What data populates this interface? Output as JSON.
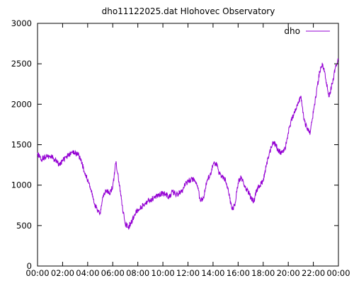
{
  "chart_data": {
    "type": "line",
    "title": "dho11122025.dat Hlohovec Observatory",
    "xlabel": "",
    "ylabel": "",
    "xlim": [
      "00:00",
      "24:00"
    ],
    "ylim": [
      0,
      3000
    ],
    "x_ticks": [
      "00:00",
      "02:00",
      "04:00",
      "06:00",
      "08:00",
      "10:00",
      "12:00",
      "14:00",
      "16:00",
      "18:00",
      "20:00",
      "22:00",
      "00:00"
    ],
    "y_ticks": [
      "0",
      "500",
      "1000",
      "1500",
      "2000",
      "2500",
      "3000"
    ],
    "grid": false,
    "legend_position": "top-right",
    "series": [
      {
        "name": "dho",
        "color": "#9400d3",
        "x": [
          "00:00",
          "00:15",
          "00:30",
          "00:45",
          "01:00",
          "01:15",
          "01:30",
          "01:45",
          "02:00",
          "02:15",
          "02:30",
          "02:45",
          "03:00",
          "03:15",
          "03:30",
          "03:45",
          "04:00",
          "04:15",
          "04:30",
          "04:45",
          "05:00",
          "05:15",
          "05:30",
          "05:45",
          "06:00",
          "06:15",
          "06:30",
          "06:45",
          "07:00",
          "07:15",
          "07:30",
          "07:45",
          "08:00",
          "08:15",
          "08:30",
          "08:45",
          "09:00",
          "09:15",
          "09:30",
          "09:45",
          "10:00",
          "10:15",
          "10:30",
          "10:45",
          "11:00",
          "11:15",
          "11:30",
          "11:45",
          "12:00",
          "12:15",
          "12:30",
          "12:45",
          "13:00",
          "13:15",
          "13:30",
          "13:45",
          "14:00",
          "14:15",
          "14:30",
          "14:45",
          "15:00",
          "15:15",
          "15:30",
          "15:45",
          "16:00",
          "16:15",
          "16:30",
          "16:45",
          "17:00",
          "17:15",
          "17:30",
          "17:45",
          "18:00",
          "18:15",
          "18:30",
          "18:45",
          "19:00",
          "19:15",
          "19:30",
          "19:45",
          "20:00",
          "20:15",
          "20:30",
          "20:45",
          "21:00",
          "21:15",
          "21:30",
          "21:45",
          "22:00",
          "22:15",
          "22:30",
          "22:45",
          "23:00",
          "23:15",
          "23:30",
          "23:45",
          "24:00"
        ],
        "values": [
          1400,
          1320,
          1340,
          1350,
          1360,
          1330,
          1300,
          1240,
          1300,
          1350,
          1370,
          1400,
          1390,
          1380,
          1300,
          1150,
          1060,
          950,
          780,
          700,
          660,
          880,
          930,
          900,
          980,
          1280,
          1040,
          750,
          520,
          480,
          540,
          640,
          700,
          720,
          760,
          800,
          820,
          840,
          860,
          880,
          900,
          880,
          850,
          920,
          890,
          900,
          920,
          1000,
          1050,
          1070,
          1080,
          1000,
          800,
          850,
          1050,
          1120,
          1250,
          1280,
          1150,
          1100,
          1060,
          900,
          700,
          750,
          1030,
          1100,
          980,
          940,
          850,
          800,
          950,
          1000,
          1050,
          1250,
          1400,
          1530,
          1500,
          1420,
          1400,
          1450,
          1650,
          1800,
          1900,
          2000,
          2100,
          1800,
          1700,
          1650,
          1900,
          2150,
          2400,
          2500,
          2300,
          2100,
          2250,
          2450,
          2550
        ]
      }
    ]
  }
}
